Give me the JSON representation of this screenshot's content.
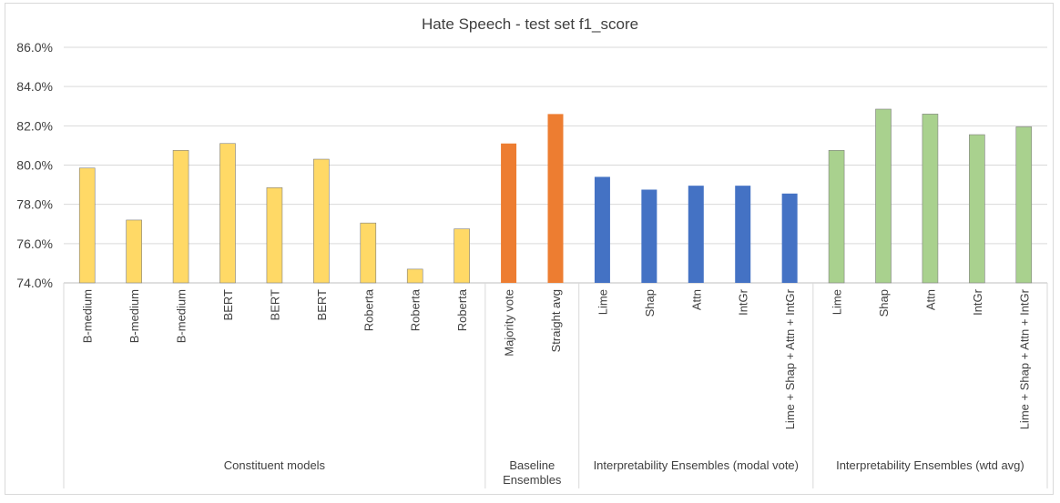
{
  "chart_data": {
    "type": "bar",
    "title": "Hate Speech - test set f1_score",
    "ylim": [
      74.0,
      86.0
    ],
    "yticks": [
      "74.0%",
      "76.0%",
      "78.0%",
      "80.0%",
      "82.0%",
      "84.0%",
      "86.0%"
    ],
    "grid": true,
    "groups": [
      {
        "name": "Constituent models",
        "color": "#FFD966",
        "categories": [
          "B-medium",
          "B-medium",
          "B-medium",
          "BERT",
          "BERT",
          "BERT",
          "Roberta",
          "Roberta",
          "Roberta"
        ],
        "values": [
          79.85,
          77.2,
          80.75,
          81.1,
          78.85,
          80.3,
          77.05,
          74.7,
          76.75
        ]
      },
      {
        "name": "Baseline Ensembles",
        "color": "#ED7D31",
        "categories": [
          "Majority vote",
          "Straight avg"
        ],
        "values": [
          81.1,
          82.6
        ]
      },
      {
        "name": "Interpretability Ensembles (modal vote)",
        "color": "#4472C4",
        "categories": [
          "Lime",
          "Shap",
          "Attn",
          "IntGr",
          "Lime + Shap + Attn + IntGr"
        ],
        "values": [
          79.4,
          78.75,
          78.95,
          78.95,
          78.55
        ]
      },
      {
        "name": "Interpretability Ensembles (wtd avg)",
        "color": "#A9D18E",
        "categories": [
          "Lime",
          "Shap",
          "Attn",
          "IntGr",
          "Lime + Shap + Attn + IntGr"
        ],
        "values": [
          80.75,
          82.85,
          82.6,
          81.55,
          81.95
        ]
      }
    ]
  }
}
